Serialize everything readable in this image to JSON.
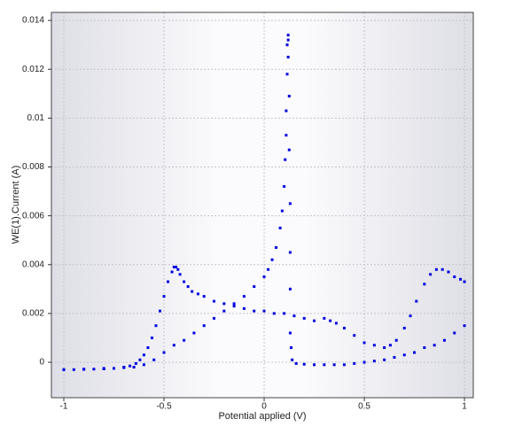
{
  "chart_data": {
    "type": "scatter",
    "x_label": "Potential applied (V)",
    "y_label": "WE(1).Current (A)",
    "color": "#0000e0",
    "grid": true,
    "xlim": [
      -1.062,
      1.044
    ],
    "ylim": [
      -0.00145,
      0.01433
    ],
    "xticks": [
      -1,
      -0.5,
      0,
      0.5,
      1
    ],
    "yticks": [
      0,
      0.002,
      0.004,
      0.006,
      0.008,
      0.01,
      0.012,
      0.014
    ],
    "x": [
      -1,
      -0.95,
      -0.9,
      -0.85,
      -0.8,
      -0.75,
      -0.7,
      -0.67,
      -0.64,
      -0.62,
      -0.6,
      -0.58,
      -0.56,
      -0.54,
      -0.52,
      -0.5,
      -0.48,
      -0.46,
      -0.45,
      -0.44,
      -0.43,
      -0.42,
      -0.4,
      -0.38,
      -0.36,
      -0.33,
      -0.3,
      -0.25,
      -0.2,
      -0.15,
      -0.1,
      -0.05,
      0,
      0.05,
      0.1,
      0.15,
      0.2,
      0.25,
      0.3,
      0.33,
      0.36,
      0.4,
      0.45,
      0.5,
      0.55,
      0.6,
      0.63,
      0.66,
      0.7,
      0.73,
      0.76,
      0.8,
      0.83,
      0.86,
      0.89,
      0.92,
      0.95,
      0.98,
      1,
      1,
      0.95,
      0.9,
      0.85,
      0.8,
      0.75,
      0.7,
      0.65,
      0.6,
      0.55,
      0.5,
      0.45,
      0.4,
      0.35,
      0.3,
      0.25,
      0.2,
      0.16,
      0.14,
      0.135,
      0.13,
      0.13,
      0.13,
      0.13,
      0.125,
      0.125,
      0.12,
      0.12,
      0.12,
      0.115,
      0.115,
      0.11,
      0.11,
      0.105,
      0.1,
      0.09,
      0.08,
      0.06,
      0.04,
      0.02,
      0,
      -0.05,
      -0.1,
      -0.15,
      -0.2,
      -0.25,
      -0.3,
      -0.35,
      -0.4,
      -0.45,
      -0.5,
      -0.55,
      -0.6,
      -0.65,
      -0.7,
      -0.8,
      -0.9,
      -1
    ],
    "values": [
      -0.0003,
      -0.0003,
      -0.00029,
      -0.00028,
      -0.00027,
      -0.00025,
      -0.0002,
      -0.00015,
      -5e-05,
      0.0001,
      0.0003,
      0.0006,
      0.001,
      0.0015,
      0.0021,
      0.0027,
      0.0033,
      0.0037,
      0.0039,
      0.0039,
      0.0038,
      0.0036,
      0.0033,
      0.0031,
      0.0029,
      0.0028,
      0.0027,
      0.0025,
      0.0024,
      0.0023,
      0.0022,
      0.0021,
      0.0021,
      0.002,
      0.002,
      0.0019,
      0.0018,
      0.0017,
      0.0018,
      0.0017,
      0.0016,
      0.0014,
      0.0011,
      0.0008,
      0.0007,
      0.0006,
      0.0007,
      0.0009,
      0.0014,
      0.0019,
      0.0025,
      0.0032,
      0.0036,
      0.0038,
      0.0038,
      0.0037,
      0.0035,
      0.0034,
      0.0033,
      0.0015,
      0.0012,
      0.0009,
      0.0007,
      0.0006,
      0.0004,
      0.0003,
      0.0002,
      0.0001,
      5e-05,
      0,
      -5e-05,
      -0.0001,
      -0.0001,
      -0.0001,
      -0.0001,
      -8e-05,
      -5e-05,
      0.0001,
      0.0006,
      0.0012,
      0.003,
      0.0045,
      0.0065,
      0.0087,
      0.0109,
      0.0125,
      0.0132,
      0.0134,
      0.013,
      0.0118,
      0.0103,
      0.0093,
      0.0083,
      0.0072,
      0.0062,
      0.0055,
      0.0047,
      0.0042,
      0.0038,
      0.0035,
      0.0031,
      0.0027,
      0.0024,
      0.0021,
      0.0018,
      0.0015,
      0.0012,
      0.0009,
      0.0007,
      0.0004,
      0.0001,
      -0.0001,
      -0.0002,
      -0.00022,
      -0.00025,
      -0.00028,
      -0.0003
    ]
  }
}
